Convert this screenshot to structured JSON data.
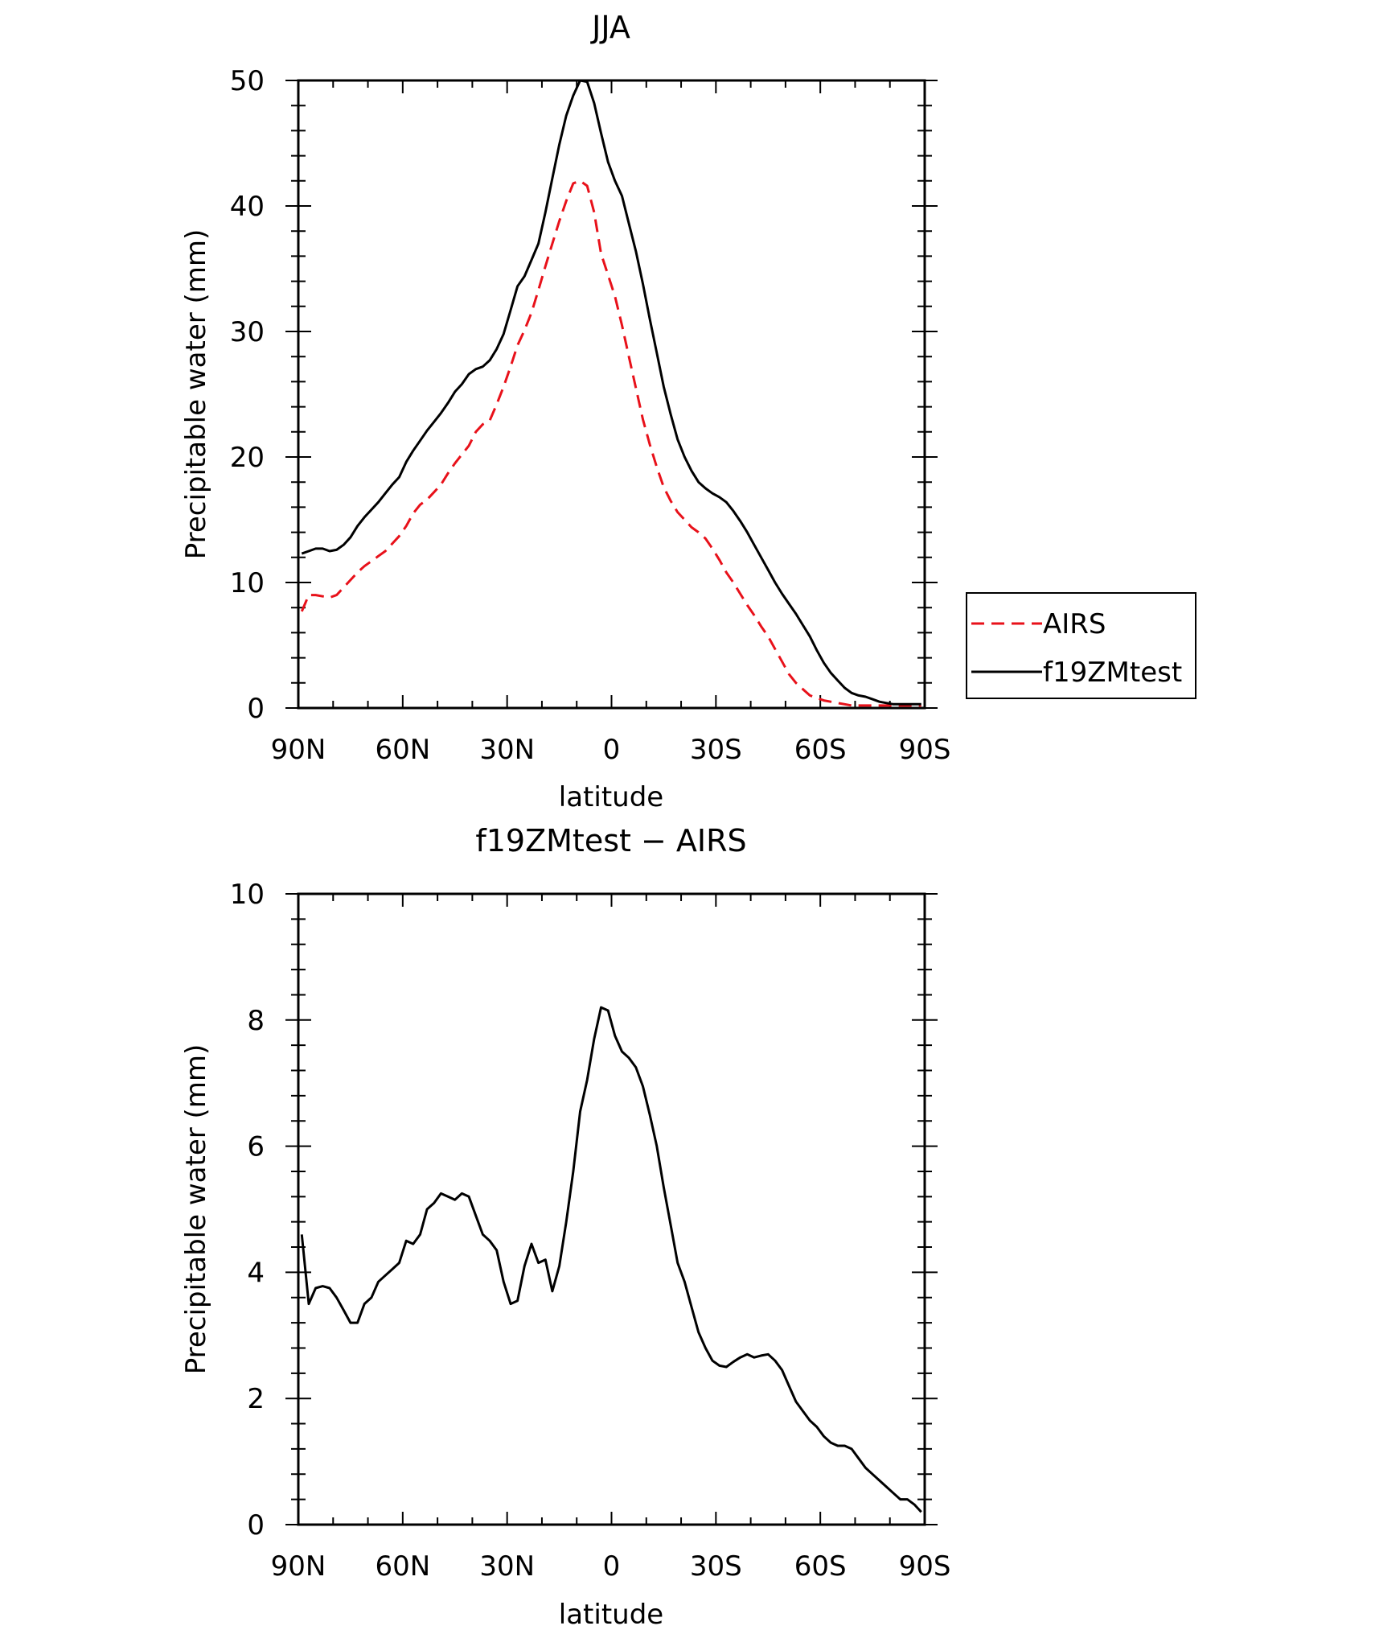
{
  "chart_data": [
    {
      "type": "line",
      "title": "JJA",
      "xlabel": "latitude",
      "ylabel": "Precipitable water (mm)",
      "xlim": [
        90,
        -90
      ],
      "ylim": [
        0,
        50
      ],
      "x_ticks": [
        {
          "value": 90,
          "label": "90N"
        },
        {
          "value": 60,
          "label": "60N"
        },
        {
          "value": 30,
          "label": "30N"
        },
        {
          "value": 0,
          "label": "0"
        },
        {
          "value": -30,
          "label": "30S"
        },
        {
          "value": -60,
          "label": "60S"
        },
        {
          "value": -90,
          "label": "90S"
        }
      ],
      "y_ticks": [
        0,
        10,
        20,
        30,
        40,
        50
      ],
      "legend_position": "right",
      "series": [
        {
          "name": "AIRS",
          "color": "#e8111a",
          "style": "dashed",
          "x": [
            89,
            87,
            85,
            83,
            81,
            79,
            77,
            75,
            73,
            71,
            69,
            67,
            65,
            63,
            61,
            59,
            57,
            55,
            53,
            51,
            49,
            47,
            45,
            43,
            41,
            39,
            37,
            35,
            33,
            31,
            29,
            27,
            25,
            23,
            21,
            19,
            17,
            15,
            13,
            11,
            9,
            7,
            5,
            3,
            1,
            -1,
            -3,
            -5,
            -7,
            -9,
            -11,
            -13,
            -15,
            -17,
            -19,
            -21,
            -23,
            -25,
            -27,
            -29,
            -31,
            -33,
            -35,
            -37,
            -39,
            -41,
            -43,
            -45,
            -47,
            -49,
            -51,
            -53,
            -55,
            -57,
            -59,
            -61,
            -63,
            -65,
            -67,
            -69,
            -71,
            -73,
            -75,
            -77,
            -79,
            -81,
            -83,
            -85,
            -87,
            -89
          ],
          "values": [
            7.7,
            9.0,
            9.0,
            8.9,
            8.8,
            9.0,
            9.6,
            10.2,
            10.8,
            11.3,
            11.7,
            12.1,
            12.5,
            13.1,
            13.7,
            14.5,
            15.5,
            16.2,
            16.6,
            17.2,
            17.8,
            18.7,
            19.5,
            20.2,
            20.9,
            22.0,
            22.6,
            22.9,
            24.2,
            25.6,
            27.2,
            28.9,
            30.1,
            31.5,
            33.3,
            35.2,
            37.0,
            38.8,
            40.4,
            41.8,
            42.0,
            41.6,
            39.5,
            36.2,
            34.5,
            32.8,
            30.5,
            28.0,
            25.5,
            23.0,
            21.0,
            19.2,
            17.6,
            16.5,
            15.6,
            15.0,
            14.4,
            14.0,
            13.5,
            12.7,
            11.8,
            10.8,
            10.0,
            9.1,
            8.2,
            7.4,
            6.5,
            5.7,
            4.7,
            3.7,
            2.7,
            2.0,
            1.5,
            1.0,
            0.8,
            0.6,
            0.5,
            0.4,
            0.3,
            0.2,
            0.2,
            0.2,
            0.2,
            0.2,
            0.2,
            0.2,
            0.2,
            0.2,
            0.2,
            0.2
          ]
        },
        {
          "name": "f19ZMtest",
          "color": "#000000",
          "style": "solid",
          "x": [
            89,
            87,
            85,
            83,
            81,
            79,
            77,
            75,
            73,
            71,
            69,
            67,
            65,
            63,
            61,
            59,
            57,
            55,
            53,
            51,
            49,
            47,
            45,
            43,
            41,
            39,
            37,
            35,
            33,
            31,
            29,
            27,
            25,
            23,
            21,
            19,
            17,
            15,
            13,
            11,
            9,
            7,
            5,
            3,
            1,
            -1,
            -3,
            -5,
            -7,
            -9,
            -11,
            -13,
            -15,
            -17,
            -19,
            -21,
            -23,
            -25,
            -27,
            -29,
            -31,
            -33,
            -35,
            -37,
            -39,
            -41,
            -43,
            -45,
            -47,
            -49,
            -51,
            -53,
            -55,
            -57,
            -59,
            -61,
            -63,
            -65,
            -67,
            -69,
            -71,
            -73,
            -75,
            -77,
            -79,
            -81,
            -83,
            -85,
            -87,
            -89
          ],
          "values": [
            12.3,
            12.5,
            12.7,
            12.7,
            12.5,
            12.6,
            13.0,
            13.6,
            14.5,
            15.2,
            15.8,
            16.4,
            17.1,
            17.8,
            18.4,
            19.6,
            20.5,
            21.3,
            22.1,
            22.8,
            23.5,
            24.3,
            25.2,
            25.8,
            26.6,
            27.0,
            27.2,
            27.7,
            28.6,
            29.8,
            31.7,
            33.6,
            34.4,
            35.7,
            37.0,
            39.5,
            42.2,
            44.9,
            47.2,
            48.8,
            50.0,
            49.9,
            48.2,
            45.8,
            43.5,
            42.0,
            40.8,
            38.6,
            36.4,
            33.8,
            31.0,
            28.3,
            25.6,
            23.4,
            21.4,
            20.0,
            18.9,
            18.0,
            17.5,
            17.1,
            16.8,
            16.4,
            15.7,
            14.9,
            14.0,
            13.0,
            12.0,
            11.0,
            10.0,
            9.1,
            8.3,
            7.5,
            6.6,
            5.7,
            4.6,
            3.6,
            2.8,
            2.2,
            1.6,
            1.2,
            1.0,
            0.9,
            0.7,
            0.5,
            0.4,
            0.3,
            0.3,
            0.3,
            0.3,
            0.3
          ]
        }
      ]
    },
    {
      "type": "line",
      "title": "f19ZMtest − AIRS",
      "xlabel": "latitude",
      "ylabel": "Precipitable water (mm)",
      "xlim": [
        90,
        -90
      ],
      "ylim": [
        0,
        10
      ],
      "x_ticks": [
        {
          "value": 90,
          "label": "90N"
        },
        {
          "value": 60,
          "label": "60N"
        },
        {
          "value": 30,
          "label": "30N"
        },
        {
          "value": 0,
          "label": "0"
        },
        {
          "value": -30,
          "label": "30S"
        },
        {
          "value": -60,
          "label": "60S"
        },
        {
          "value": -90,
          "label": "90S"
        }
      ],
      "y_ticks": [
        0,
        2,
        4,
        6,
        8,
        10
      ],
      "series": [
        {
          "name": "f19ZMtest − AIRS",
          "color": "#000000",
          "style": "solid",
          "x": [
            89,
            87,
            85,
            83,
            81,
            79,
            77,
            75,
            73,
            71,
            69,
            67,
            65,
            63,
            61,
            59,
            57,
            55,
            53,
            51,
            49,
            47,
            45,
            43,
            41,
            39,
            37,
            35,
            33,
            31,
            29,
            27,
            25,
            23,
            21,
            19,
            17,
            15,
            13,
            11,
            9,
            7,
            5,
            3,
            1,
            -1,
            -3,
            -5,
            -7,
            -9,
            -11,
            -13,
            -15,
            -17,
            -19,
            -21,
            -23,
            -25,
            -27,
            -29,
            -31,
            -33,
            -35,
            -37,
            -39,
            -41,
            -43,
            -45,
            -47,
            -49,
            -51,
            -53,
            -55,
            -57,
            -59,
            -61,
            -63,
            -65,
            -67,
            -69,
            -71,
            -73,
            -75,
            -77,
            -79,
            -81,
            -83,
            -85,
            -87,
            -89
          ],
          "values": [
            4.6,
            3.5,
            3.75,
            3.78,
            3.75,
            3.6,
            3.4,
            3.2,
            3.2,
            3.5,
            3.6,
            3.85,
            3.95,
            4.05,
            4.15,
            4.5,
            4.45,
            4.6,
            5.0,
            5.1,
            5.25,
            5.2,
            5.15,
            5.25,
            5.2,
            4.9,
            4.6,
            4.5,
            4.35,
            3.85,
            3.5,
            3.55,
            4.1,
            4.45,
            4.15,
            4.2,
            3.7,
            4.1,
            4.8,
            5.6,
            6.55,
            7.05,
            7.7,
            8.2,
            8.15,
            7.75,
            7.5,
            7.4,
            7.25,
            6.95,
            6.5,
            6.0,
            5.35,
            4.75,
            4.15,
            3.85,
            3.45,
            3.05,
            2.8,
            2.6,
            2.52,
            2.5,
            2.58,
            2.65,
            2.7,
            2.65,
            2.68,
            2.7,
            2.6,
            2.45,
            2.2,
            1.95,
            1.8,
            1.65,
            1.55,
            1.4,
            1.3,
            1.25,
            1.25,
            1.2,
            1.05,
            0.9,
            0.8,
            0.7,
            0.6,
            0.5,
            0.4,
            0.4,
            0.32,
            0.2
          ]
        }
      ]
    }
  ],
  "legend": {
    "items": [
      {
        "label": "AIRS",
        "color": "#e8111a",
        "style": "dashed"
      },
      {
        "label": "f19ZMtest",
        "color": "#000000",
        "style": "solid"
      }
    ]
  }
}
